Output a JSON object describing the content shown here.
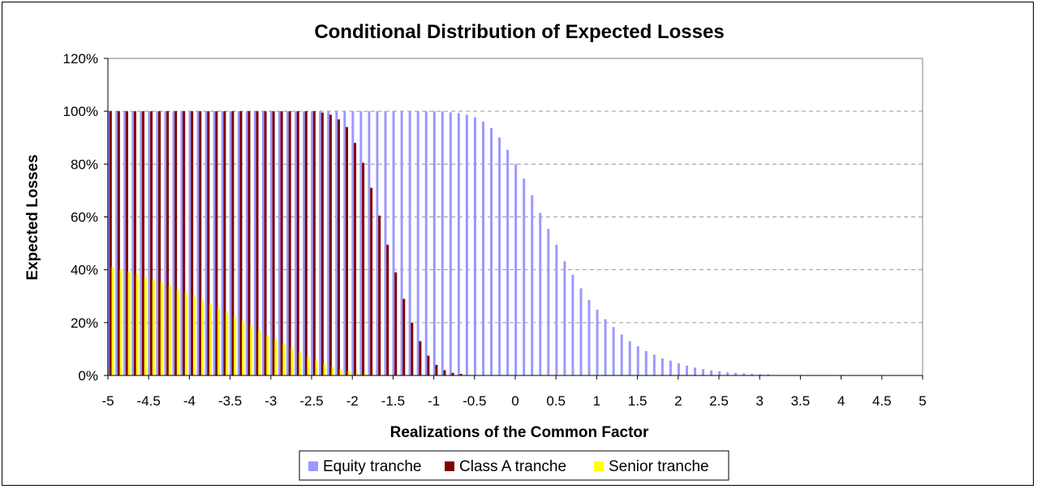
{
  "chart_data": {
    "type": "bar",
    "title": "Conditional Distribution of Expected Losses",
    "xlabel": "Realizations of the Common Factor",
    "ylabel": "Expected Losses",
    "xlim": [
      -5,
      5
    ],
    "ylim": [
      0,
      120
    ],
    "x_step": 0.1,
    "x_ticks": [
      "-5",
      "-4.5",
      "-4",
      "-3.5",
      "-3",
      "-2.5",
      "-2",
      "-1.5",
      "-1",
      "-0.5",
      "0",
      "0.5",
      "1",
      "1.5",
      "2",
      "2.5",
      "3",
      "3.5",
      "4",
      "4.5",
      "5"
    ],
    "y_ticks": [
      "0%",
      "20%",
      "40%",
      "60%",
      "80%",
      "100%",
      "120%"
    ],
    "grid": "horizontal dashed",
    "legend_position": "bottom",
    "series": [
      {
        "name": "Equity tranche",
        "color": "#9999ff",
        "values": [
          100,
          100,
          100,
          100,
          100,
          100,
          100,
          100,
          100,
          100,
          100,
          100,
          100,
          100,
          100,
          100,
          100,
          100,
          100,
          100,
          100,
          100,
          100,
          100,
          100,
          100,
          100,
          100,
          100,
          100,
          100,
          100,
          100,
          100,
          100,
          100,
          100,
          100,
          100,
          100,
          100,
          100,
          99.6,
          99.3,
          98.7,
          97.7,
          96.1,
          93.6,
          90.1,
          85.4,
          80,
          74.5,
          68.2,
          61.5,
          55.5,
          49.5,
          43.2,
          38.1,
          33,
          28.6,
          24.9,
          21.3,
          18.3,
          15.5,
          13,
          11,
          9.2,
          7.9,
          6.5,
          5.6,
          4.6,
          3.7,
          3,
          2.4,
          1.9,
          1.6,
          1.2,
          1,
          0.8,
          0.6,
          0.5,
          0.4,
          0,
          0,
          0,
          0,
          0,
          0,
          0,
          0,
          0,
          0,
          0,
          0,
          0,
          0,
          0,
          0,
          0,
          0,
          0
        ]
      },
      {
        "name": "Class A tranche",
        "color": "#800000",
        "values": [
          100,
          100,
          100,
          100,
          100,
          100,
          100,
          100,
          100,
          100,
          100,
          100,
          100,
          100,
          100,
          100,
          100,
          100,
          100,
          100,
          100,
          100,
          100,
          100,
          100,
          100,
          99.5,
          98.7,
          96.9,
          94,
          88,
          80.5,
          71,
          60.5,
          49.5,
          39,
          29,
          20,
          13,
          7.5,
          4,
          2,
          1,
          0.6,
          0,
          0,
          0,
          0,
          0,
          0,
          0,
          0,
          0,
          0,
          0,
          0,
          0,
          0,
          0,
          0,
          0,
          0,
          0,
          0,
          0,
          0,
          0,
          0,
          0,
          0,
          0,
          0,
          0,
          0,
          0,
          0,
          0,
          0,
          0,
          0,
          0,
          0,
          0,
          0,
          0,
          0,
          0,
          0,
          0,
          0,
          0,
          0,
          0,
          0,
          0,
          0,
          0,
          0,
          0,
          0,
          0
        ]
      },
      {
        "name": "Senior tranche",
        "color": "#ffff00",
        "values": [
          41,
          40.1,
          39.2,
          38.3,
          37.4,
          36.3,
          35.2,
          34,
          32.6,
          31.3,
          29.9,
          28.4,
          26.9,
          25.4,
          23.8,
          22.2,
          20.5,
          18.8,
          17,
          15.3,
          13.6,
          11.9,
          10.2,
          8.6,
          7,
          5.6,
          4.4,
          3.3,
          2.4,
          1.6,
          1,
          0.6,
          0.4,
          0,
          0,
          0,
          0,
          0,
          0,
          0,
          0,
          0,
          0,
          0,
          0,
          0,
          0,
          0,
          0,
          0,
          0,
          0,
          0,
          0,
          0,
          0,
          0,
          0,
          0,
          0,
          0,
          0,
          0,
          0,
          0,
          0,
          0,
          0,
          0,
          0,
          0,
          0,
          0,
          0,
          0,
          0,
          0,
          0,
          0,
          0,
          0,
          0,
          0,
          0,
          0,
          0,
          0,
          0,
          0,
          0,
          0,
          0,
          0,
          0,
          0,
          0,
          0,
          0,
          0,
          0,
          0
        ]
      }
    ]
  }
}
